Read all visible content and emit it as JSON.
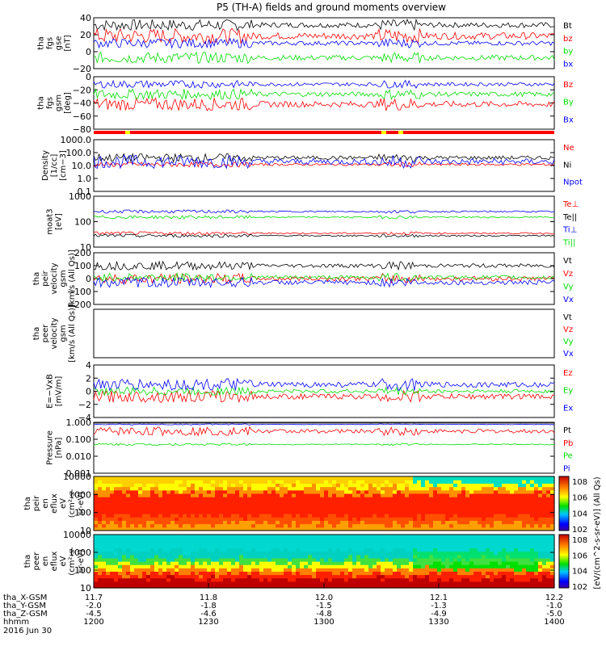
{
  "title": "P5 (TH-A) fields and ground moments overview",
  "colors": {
    "black": "#000000",
    "red": "#ff0000",
    "green": "#00dd00",
    "blue": "#0000ff",
    "yellow": "#ffff00"
  },
  "xaxis": {
    "row_labels": [
      "tha_X-GSM",
      "tha_Y-GSM",
      "tha_Z-GSM",
      "hhmm"
    ],
    "ticks": [
      {
        "x": "11.7",
        "y": "-2.0",
        "z": "-4.5",
        "t": "1200"
      },
      {
        "x": "11.8",
        "y": "-1.8",
        "z": "-4.6",
        "t": "1230"
      },
      {
        "x": "12.0",
        "y": "-1.5",
        "z": "-4.8",
        "t": "1300"
      },
      {
        "x": "12.1",
        "y": "-1.3",
        "z": "-4.9",
        "t": "1330"
      },
      {
        "x": "12.2",
        "y": "-1.0",
        "z": "-5.0",
        "t": "1400"
      }
    ],
    "date": "2016 Jun 30",
    "range_hhmm": [
      "1200",
      "1400"
    ]
  },
  "colorbar_label": "[eV/(cm^2-s-sr-eV)] (All Qs)",
  "colorbar_ticks": [
    "10^8",
    "10^6",
    "10^4",
    "10^2"
  ],
  "chart_data": [
    {
      "id": "p1",
      "type": "line",
      "ylabel": [
        "tha",
        "fgs",
        "gse",
        "[nT]"
      ],
      "ylim": [
        -30,
        40
      ],
      "ticks": [
        "40",
        "20",
        "0",
        "−20"
      ],
      "series": [
        {
          "name": "Bt",
          "color": "#000000",
          "base": 30,
          "amp": 6
        },
        {
          "name": "bz",
          "color": "#ff0000",
          "base": 15,
          "amp": 8
        },
        {
          "name": "by",
          "color": "#00dd00",
          "base": -15,
          "amp": 6
        },
        {
          "name": "bx",
          "color": "#0000ff",
          "base": 5,
          "amp": 5
        }
      ]
    },
    {
      "id": "p2",
      "type": "line",
      "ylabel": [
        "tha",
        "fgs",
        "gsm",
        "[deg]"
      ],
      "ylim": [
        -95,
        10
      ],
      "ticks": [
        "0",
        "−20",
        "−40",
        "−60",
        "−80"
      ],
      "series": [
        {
          "name": "Bz",
          "color": "#ff0000",
          "base": -45,
          "amp": 10
        },
        {
          "name": "By",
          "color": "#00dd00",
          "base": -25,
          "amp": 8
        },
        {
          "name": "Bx",
          "color": "#0000ff",
          "base": -5,
          "amp": 6
        }
      ]
    },
    {
      "id": "p3",
      "type": "line",
      "log": true,
      "ylabel": [
        "Density",
        "[1/cc]",
        "[cm−3]"
      ],
      "ylim": [
        0.1,
        1000
      ],
      "ticks": [
        "1000.0",
        "100.0",
        "10.0",
        "1.0",
        "0.1"
      ],
      "series": [
        {
          "name": "Ne",
          "color": "#ff0000",
          "base": 12,
          "amp": 0.3
        },
        {
          "name": "Ni",
          "color": "#000000",
          "base": 40,
          "amp": 0.5
        },
        {
          "name": "Npot",
          "color": "#0000ff",
          "base": 20,
          "amp": 0.8
        }
      ]
    },
    {
      "id": "p4",
      "type": "line",
      "log": true,
      "ylabel": [
        "moat3",
        "[eV]"
      ],
      "ylim": [
        10,
        1000
      ],
      "ticks": [
        "1000",
        "100",
        "10"
      ],
      "series": [
        {
          "name": "Te⊥",
          "color": "#ff0000",
          "base": 35,
          "amp": 0.1
        },
        {
          "name": "Te||",
          "color": "#000000",
          "base": 28,
          "amp": 0.1
        },
        {
          "name": "Ti⊥",
          "color": "#0000ff",
          "base": 250,
          "amp": 0.1
        },
        {
          "name": "Ti||",
          "color": "#00dd00",
          "base": 150,
          "amp": 0.1
        }
      ]
    },
    {
      "id": "p5",
      "type": "line",
      "ylabel": [
        "tha",
        "peir",
        "velocity",
        "gsm",
        "[km/s (All Qs)]"
      ],
      "ylim": [
        -200,
        200
      ],
      "ticks": [
        "200",
        "100",
        "0",
        "−100",
        "−200"
      ],
      "series": [
        {
          "name": "Vt",
          "color": "#000000",
          "base": 100,
          "amp": 25
        },
        {
          "name": "Vz",
          "color": "#ff0000",
          "base": 0,
          "amp": 30
        },
        {
          "name": "Vy",
          "color": "#00dd00",
          "base": 10,
          "amp": 25
        },
        {
          "name": "Vx",
          "color": "#0000ff",
          "base": -30,
          "amp": 30
        }
      ]
    },
    {
      "id": "p6",
      "type": "line",
      "ylabel": [
        "tha",
        "peer",
        "velocity",
        "gsm",
        "[km/s (All Qs)]"
      ],
      "ylim": [
        -200,
        200
      ],
      "ticks": [],
      "series": [
        {
          "name": "Vt",
          "color": "#000000",
          "base": null,
          "amp": 0
        },
        {
          "name": "Vz",
          "color": "#ff0000",
          "base": null,
          "amp": 0
        },
        {
          "name": "Vy",
          "color": "#00dd00",
          "base": null,
          "amp": 0
        },
        {
          "name": "Vx",
          "color": "#0000ff",
          "base": null,
          "amp": 0
        }
      ]
    },
    {
      "id": "p7",
      "type": "line",
      "ylabel": [
        "E=−VxB",
        "[mV/m]"
      ],
      "ylim": [
        -4,
        4
      ],
      "ticks": [
        "4",
        "2",
        "0",
        "−2",
        "−4"
      ],
      "series": [
        {
          "name": "Ez",
          "color": "#ff0000",
          "base": -0.8,
          "amp": 0.7
        },
        {
          "name": "Ey",
          "color": "#00dd00",
          "base": 0,
          "amp": 0.5
        },
        {
          "name": "Ex",
          "color": "#0000ff",
          "base": 1,
          "amp": 0.7
        }
      ]
    },
    {
      "id": "p8",
      "type": "line",
      "log": true,
      "ylabel": [
        "Pressure",
        "[nPa]"
      ],
      "ylim": [
        0.001,
        1
      ],
      "ticks": [
        "1.000",
        "0.100",
        "0.010",
        "0.001"
      ],
      "series": [
        {
          "name": "Pt",
          "color": "#000000",
          "base": 1,
          "amp": 0.05
        },
        {
          "name": "Pb",
          "color": "#ff0000",
          "base": 0.3,
          "amp": 0.4
        },
        {
          "name": "Pe",
          "color": "#00dd00",
          "base": 0.05,
          "amp": 0.1
        },
        {
          "name": "Pi",
          "color": "#0000ff",
          "base": 0.75,
          "amp": 0.05
        }
      ]
    },
    {
      "id": "p9",
      "type": "heatmap",
      "ylabel": [
        "tha",
        "peir",
        "en",
        "eflux",
        "eV",
        "(cm²-s-",
        "sr-eV)"
      ],
      "ylim": [
        5,
        25000
      ],
      "ticks": [
        "10000",
        "1000",
        "100",
        "10"
      ]
    },
    {
      "id": "p10",
      "type": "heatmap",
      "ylabel": [
        "tha",
        "peer",
        "en",
        "eflux",
        "eV",
        "(cm²-s-",
        "sr-eV)"
      ],
      "ylim": [
        5,
        25000
      ],
      "ticks": [
        "10000",
        "1000",
        "100",
        "10"
      ]
    }
  ]
}
